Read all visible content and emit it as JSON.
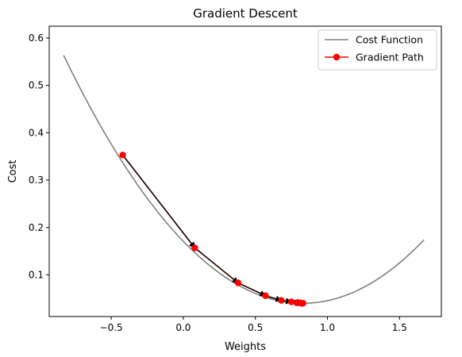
{
  "chart_data": {
    "type": "line",
    "title": "Gradient Descent",
    "xlabel": "Weights",
    "ylabel": "Cost",
    "xlim": [
      -0.93,
      1.79
    ],
    "ylim": [
      0.012,
      0.625
    ],
    "xticks": [
      -0.5,
      0.0,
      0.5,
      1.0,
      1.5
    ],
    "xtick_labels": [
      "−0.5",
      "0.0",
      "0.5",
      "1.0",
      "1.5"
    ],
    "yticks": [
      0.1,
      0.2,
      0.3,
      0.4,
      0.5,
      0.6
    ],
    "ytick_labels": [
      "0.1",
      "0.2",
      "0.3",
      "0.4",
      "0.5",
      "0.6"
    ],
    "grid": false,
    "legend_position": "top-right",
    "series": [
      {
        "name": "Cost Function",
        "color": "#808080",
        "style": "line",
        "function": {
          "form": "quadratic",
          "vertex_x": 0.83,
          "vertex_y": 0.04,
          "a": 0.19
        },
        "x_range": [
          -0.83,
          1.67
        ]
      },
      {
        "name": "Gradient Path",
        "color": "#ff0000",
        "style": "line-marker",
        "x": [
          -0.42,
          0.08,
          0.38,
          0.57,
          0.68,
          0.75,
          0.79,
          0.81,
          0.82,
          0.83
        ],
        "y": [
          0.353,
          0.157,
          0.083,
          0.056,
          0.046,
          0.043,
          0.041,
          0.041,
          0.04,
          0.04
        ]
      }
    ],
    "arrows": {
      "color": "#000000",
      "between": "consecutive gradient path points"
    }
  }
}
